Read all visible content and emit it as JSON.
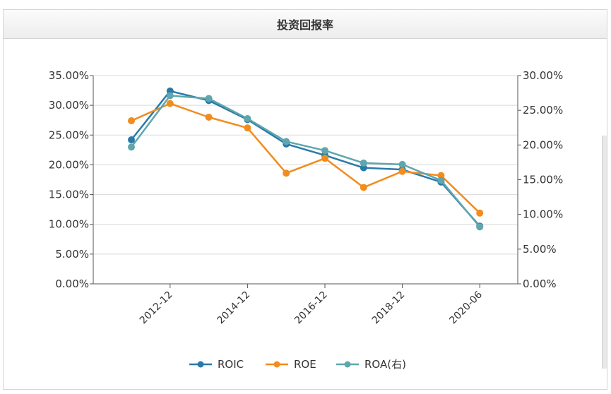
{
  "panel": {
    "title": "投资回报率"
  },
  "chart_data": {
    "type": "line",
    "title": "投资回报率",
    "categories": [
      "2011-12",
      "2012-12",
      "2013-12",
      "2014-12",
      "2015-12",
      "2016-12",
      "2017-12",
      "2018-12",
      "2019-12",
      "2020-06"
    ],
    "x_tick_labels": [
      "2012-12",
      "2014-12",
      "2016-12",
      "2018-12",
      "2020-06"
    ],
    "left_axis": {
      "ylim": [
        0,
        35
      ],
      "ticks": [
        "0.00%",
        "5.00%",
        "10.00%",
        "15.00%",
        "20.00%",
        "25.00%",
        "30.00%",
        "35.00%"
      ]
    },
    "right_axis": {
      "ylim": [
        0,
        30
      ],
      "ticks": [
        "0.00%",
        "5.00%",
        "10.00%",
        "15.00%",
        "20.00%",
        "25.00%",
        "30.00%"
      ]
    },
    "grid": true,
    "legend_position": "bottom",
    "series": [
      {
        "name": "ROIC",
        "axis": "left",
        "color": "#2a7aa8",
        "values": [
          24.2,
          32.4,
          30.8,
          27.6,
          23.5,
          21.6,
          19.5,
          19.2,
          17.1,
          9.7
        ]
      },
      {
        "name": "ROE",
        "axis": "left",
        "color": "#f28c1e",
        "values": [
          27.4,
          30.3,
          28.0,
          26.2,
          18.6,
          21.1,
          16.2,
          18.9,
          18.2,
          11.9
        ]
      },
      {
        "name": "ROA(右)",
        "axis": "right",
        "color": "#5fa6ad",
        "values": [
          19.7,
          27.1,
          26.7,
          23.8,
          20.5,
          19.2,
          17.4,
          17.2,
          14.9,
          8.2
        ]
      }
    ]
  }
}
